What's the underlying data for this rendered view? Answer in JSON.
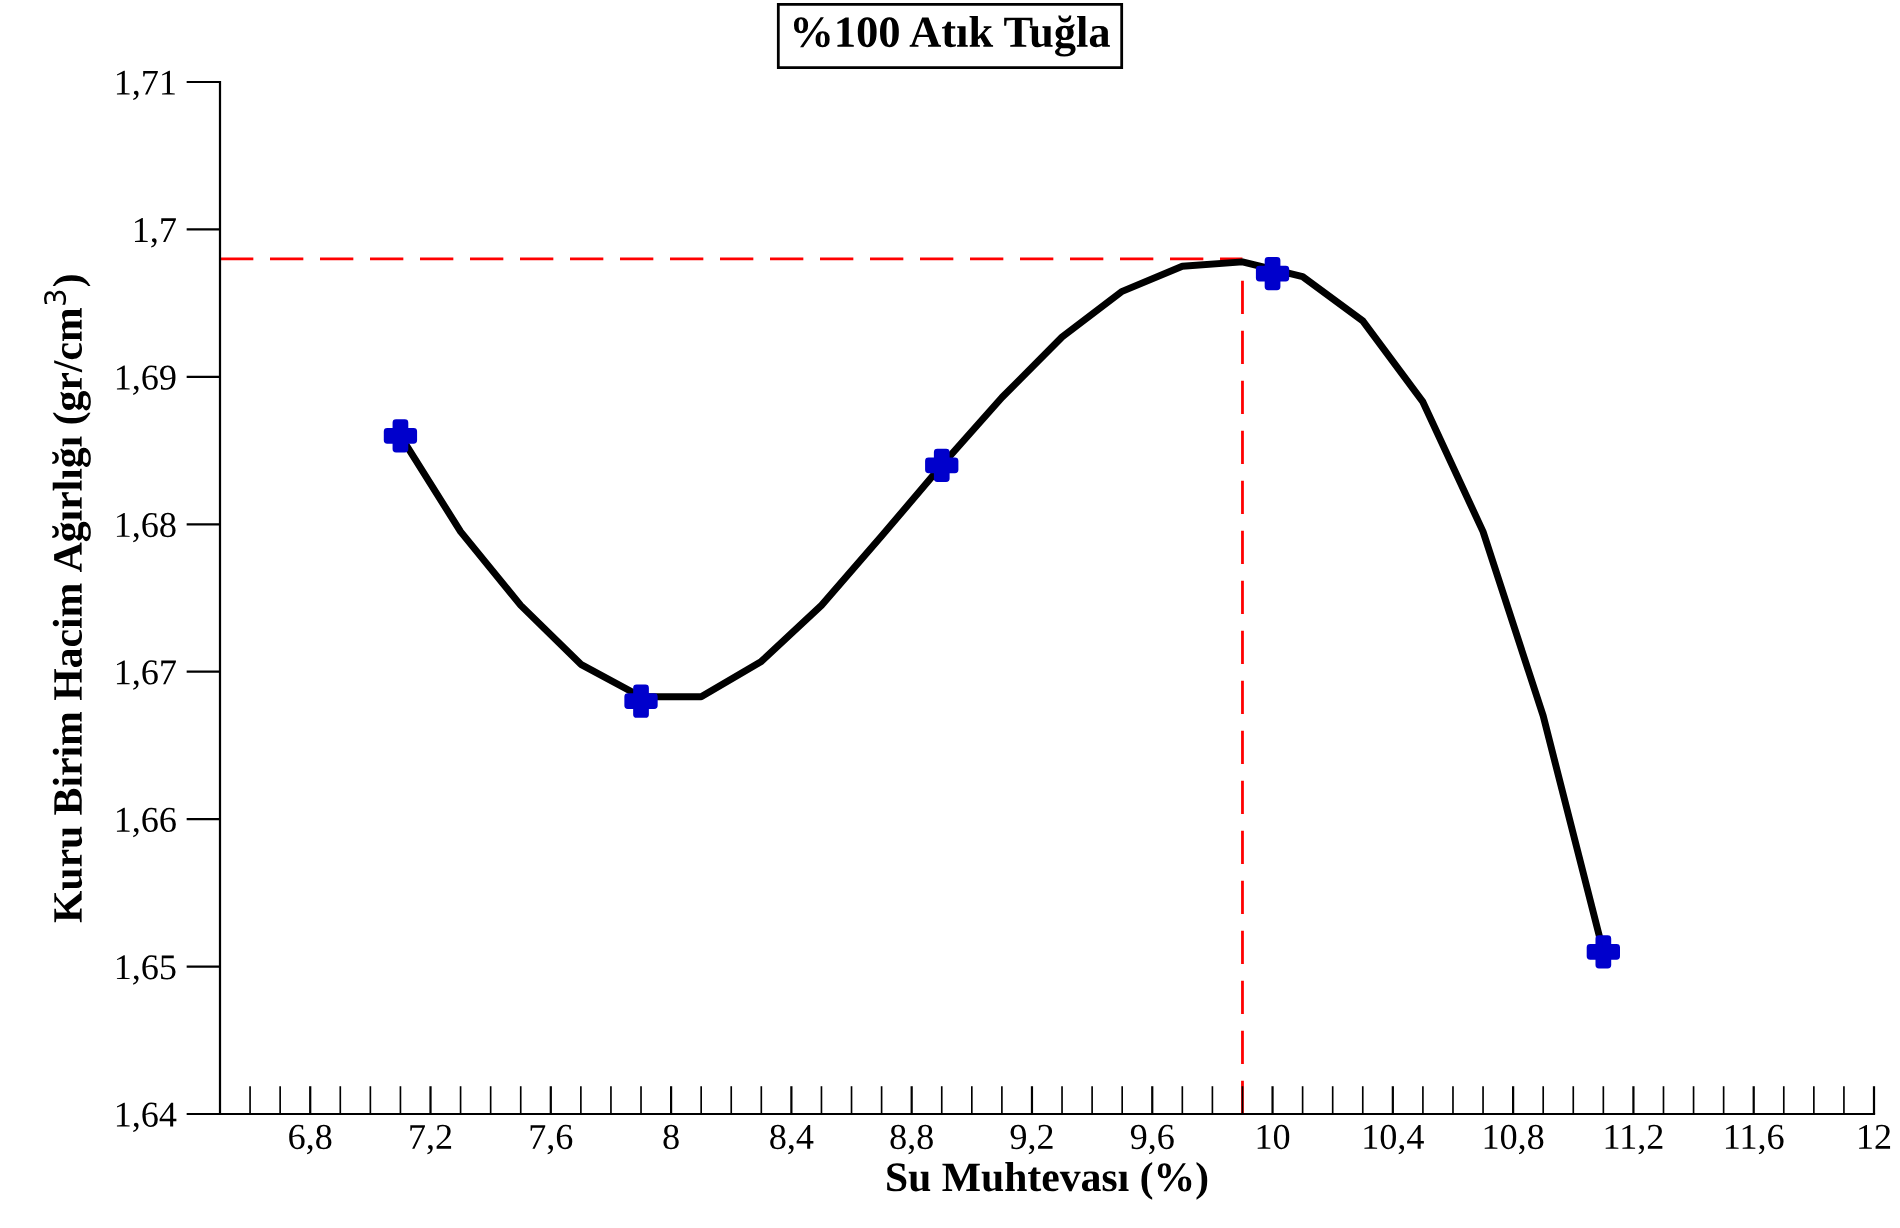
{
  "chart_data": {
    "type": "line",
    "title": "%100 Atık Tuğla",
    "xlabel": "Su Muhtevası (%)",
    "ylabel": "Kuru Birim Hacim Ağırlığı (gr/cm$^{3}$)",
    "series": [
      {
        "color": "#000000",
        "marker": "none",
        "line_style": "solid",
        "x": [
          7.1,
          7.3,
          7.5,
          7.7,
          7.9,
          8.1,
          8.3,
          8.5,
          8.7,
          8.9,
          9.1,
          9.3,
          9.5,
          9.7,
          9.9,
          10.1,
          10.3,
          10.5,
          10.7,
          10.9,
          11.1
        ],
        "values": [
          1.686,
          1.6795,
          1.6745,
          1.6705,
          1.6683,
          1.6683,
          1.6707,
          1.6745,
          1.6792,
          1.684,
          1.6886,
          1.6927,
          1.6958,
          1.6975,
          1.6978,
          1.6968,
          1.6938,
          1.6883,
          1.6795,
          1.667,
          1.651
        ]
      },
      {
        "type": "scatter",
        "color": "#0000cc",
        "marker": "cross",
        "x": [
          7.1,
          7.9,
          8.9,
          10.0,
          11.1
        ],
        "values": [
          1.686,
          1.668,
          1.684,
          1.697,
          1.651
        ]
      }
    ],
    "ref_lines": [
      {
        "axis": "y",
        "value": 1.698,
        "color": "#ff0000",
        "line_style": "dashed"
      },
      {
        "axis": "x",
        "value": 9.9,
        "color": "#ff0000",
        "line_style": "dashed"
      }
    ],
    "xlim": [
      6.5,
      12
    ],
    "xticks": [
      {
        "value": 6.8,
        "label": "6,8"
      },
      {
        "value": 7.2,
        "label": "7,2"
      },
      {
        "value": 7.6,
        "label": "7,6"
      },
      8,
      {
        "value": 8.4,
        "label": "8,4"
      },
      {
        "value": 8.8,
        "label": "8,8"
      },
      {
        "value": 9.2,
        "label": "9,2"
      },
      {
        "value": 9.6,
        "label": "9,6"
      },
      10,
      {
        "value": 10.4,
        "label": "10,4"
      },
      {
        "value": 10.8,
        "label": "10,8"
      },
      {
        "value": 11.2,
        "label": "11,2"
      },
      {
        "value": 11.6,
        "label": "11,6"
      },
      12
    ],
    "ylim": [
      1.64,
      1.71
    ],
    "yticks": [
      {
        "value": 1.64,
        "label": "1,64"
      },
      {
        "value": 1.65,
        "label": "1,65"
      },
      {
        "value": 1.66,
        "label": "1,66"
      },
      {
        "value": 1.67,
        "label": "1,67"
      },
      {
        "value": 1.68,
        "label": "1,68"
      },
      {
        "value": 1.69,
        "label": "1,69"
      },
      {
        "value": 1.7,
        "label": "1,7"
      },
      {
        "value": 1.71,
        "label": "1,71"
      }
    ],
    "grid": false
  }
}
